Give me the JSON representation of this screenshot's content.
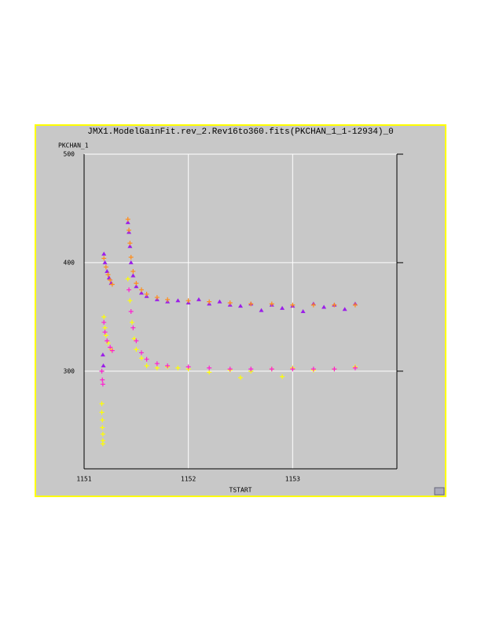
{
  "chart_data": {
    "type": "scatter",
    "title": "JMX1.ModelGainFit.rev_2.Rev16to360.fits(PKCHAN_1_1-12934)_0",
    "y_label": "PKCHAN_1",
    "x_label": "TSTART",
    "xlim": [
      1151,
      1154
    ],
    "ylim": [
      210,
      500
    ],
    "xticks": [
      1151,
      1152,
      1153
    ],
    "yticks": [
      500,
      400,
      300
    ],
    "grid": true,
    "series": [
      {
        "color": "#9b1fe8",
        "marker": "triangle",
        "x": [
          1151.18,
          1151.185,
          1151.19,
          1151.2,
          1151.22,
          1151.24,
          1151.26,
          1151.42,
          1151.43,
          1151.44,
          1151.45,
          1151.47,
          1151.5,
          1151.55,
          1151.6,
          1151.7,
          1151.8,
          1151.9,
          1152.0,
          1152.1,
          1152.2,
          1152.3,
          1152.4,
          1152.5,
          1152.6,
          1152.7,
          1152.8,
          1152.9,
          1153.0,
          1153.1,
          1153.2,
          1153.3,
          1153.4,
          1153.5,
          1153.6
        ],
        "values": [
          315,
          305,
          408,
          400,
          392,
          386,
          381,
          437,
          428,
          415,
          400,
          388,
          378,
          372,
          369,
          366,
          364,
          365,
          363,
          366,
          362,
          364,
          361,
          360,
          362,
          356,
          361,
          358,
          360,
          355,
          362,
          359,
          361,
          357,
          362
        ]
      },
      {
        "color": "#ffff00",
        "marker": "plus",
        "x": [
          1151.17,
          1151.17,
          1151.175,
          1151.175,
          1151.18,
          1151.18,
          1151.18,
          1151.19,
          1151.2,
          1151.21,
          1151.23,
          1151.26,
          1151.42,
          1151.44,
          1151.46,
          1151.48,
          1151.5,
          1151.55,
          1151.6,
          1151.7,
          1151.8,
          1151.9,
          1152.0,
          1152.2,
          1152.4,
          1152.5,
          1152.6,
          1152.8,
          1152.9,
          1153.0,
          1153.2,
          1153.4,
          1153.6
        ],
        "values": [
          270,
          262,
          255,
          248,
          242,
          236,
          233,
          350,
          340,
          333,
          326,
          320,
          385,
          365,
          345,
          330,
          320,
          312,
          305,
          303,
          304,
          303,
          302,
          299,
          301,
          294,
          300,
          302,
          295,
          303,
          301,
          302,
          304
        ]
      },
      {
        "color": "#ff8c1a",
        "marker": "plus",
        "x": [
          1151.19,
          1151.21,
          1151.23,
          1151.25,
          1151.27,
          1151.42,
          1151.43,
          1151.44,
          1151.45,
          1151.47,
          1151.5,
          1151.55,
          1151.6,
          1151.7,
          1151.8,
          1152.0,
          1152.2,
          1152.4,
          1152.6,
          1152.8,
          1153.0,
          1153.2,
          1153.4,
          1153.6
        ],
        "values": [
          404,
          396,
          389,
          384,
          380,
          440,
          430,
          418,
          405,
          392,
          381,
          375,
          371,
          368,
          366,
          365,
          364,
          363,
          362,
          362,
          361,
          361,
          361,
          361
        ]
      },
      {
        "color": "#ff1fd0",
        "marker": "plus",
        "x": [
          1151.17,
          1151.175,
          1151.18,
          1151.19,
          1151.2,
          1151.22,
          1151.25,
          1151.27,
          1151.43,
          1151.45,
          1151.47,
          1151.5,
          1151.55,
          1151.6,
          1151.7,
          1151.8,
          1152.0,
          1152.2,
          1152.4,
          1152.6,
          1152.8,
          1153.0,
          1153.2,
          1153.4,
          1153.6
        ],
        "values": [
          300,
          292,
          288,
          345,
          336,
          328,
          322,
          319,
          375,
          355,
          340,
          328,
          317,
          311,
          307,
          305,
          304,
          303,
          302,
          302,
          302,
          302,
          302,
          302,
          303
        ]
      }
    ]
  }
}
